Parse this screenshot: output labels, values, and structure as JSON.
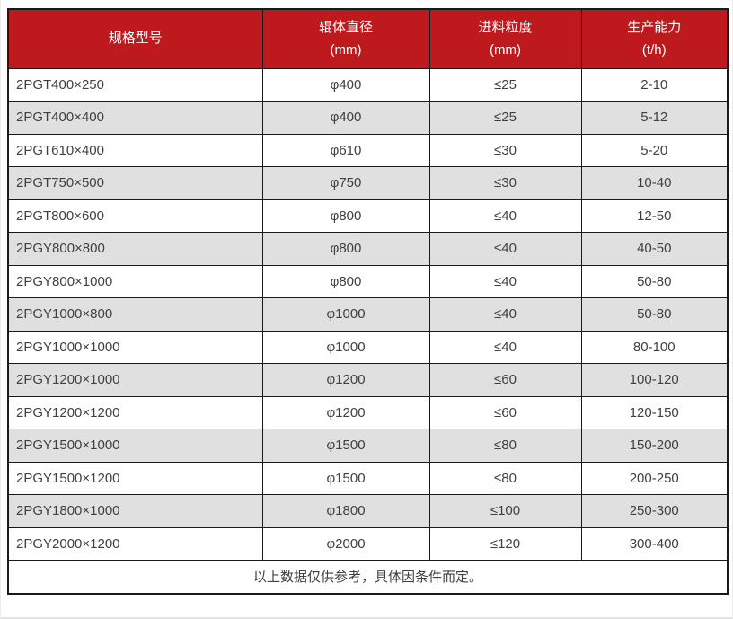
{
  "table": {
    "header": {
      "columns": [
        {
          "title": "规格型号",
          "unit": ""
        },
        {
          "title": "辊体直径",
          "unit": "(mm)"
        },
        {
          "title": "进料粒度",
          "unit": "(mm)"
        },
        {
          "title": "生产能力",
          "unit": "(t/h)"
        }
      ]
    },
    "rows": [
      [
        "2PGT400×250",
        "φ400",
        "≤25",
        "2-10"
      ],
      [
        "2PGT400×400",
        "φ400",
        "≤25",
        "5-12"
      ],
      [
        "2PGT610×400",
        "φ610",
        "≤30",
        "5-20"
      ],
      [
        "2PGT750×500",
        "φ750",
        "≤30",
        "10-40"
      ],
      [
        "2PGT800×600",
        "φ800",
        "≤40",
        "12-50"
      ],
      [
        "2PGY800×800",
        "φ800",
        "≤40",
        "40-50"
      ],
      [
        "2PGY800×1000",
        "φ800",
        "≤40",
        "50-80"
      ],
      [
        "2PGY1000×800",
        "φ1000",
        "≤40",
        "50-80"
      ],
      [
        "2PGY1000×1000",
        "φ1000",
        "≤40",
        "80-100"
      ],
      [
        "2PGY1200×1000",
        "φ1200",
        "≤60",
        "100-120"
      ],
      [
        "2PGY1200×1200",
        "φ1200",
        "≤60",
        "120-150"
      ],
      [
        "2PGY1500×1000",
        "φ1500",
        "≤80",
        "150-200"
      ],
      [
        "2PGY1500×1200",
        "φ1500",
        "≤80",
        "200-250"
      ],
      [
        "2PGY1800×1000",
        "φ1800",
        "≤100",
        "250-300"
      ],
      [
        "2PGY2000×1200",
        "φ2000",
        "≤120",
        "300-400"
      ]
    ],
    "footer_note": "以上数据仅供参考，具体因条件而定。",
    "colors": {
      "header_bg": "#be1a1e",
      "header_text": "#ffffff",
      "row_bg": "#ffffff",
      "row_alt_bg": "#e0e0e0",
      "border": "#1a1a1a",
      "cell_text": "#404040"
    }
  }
}
